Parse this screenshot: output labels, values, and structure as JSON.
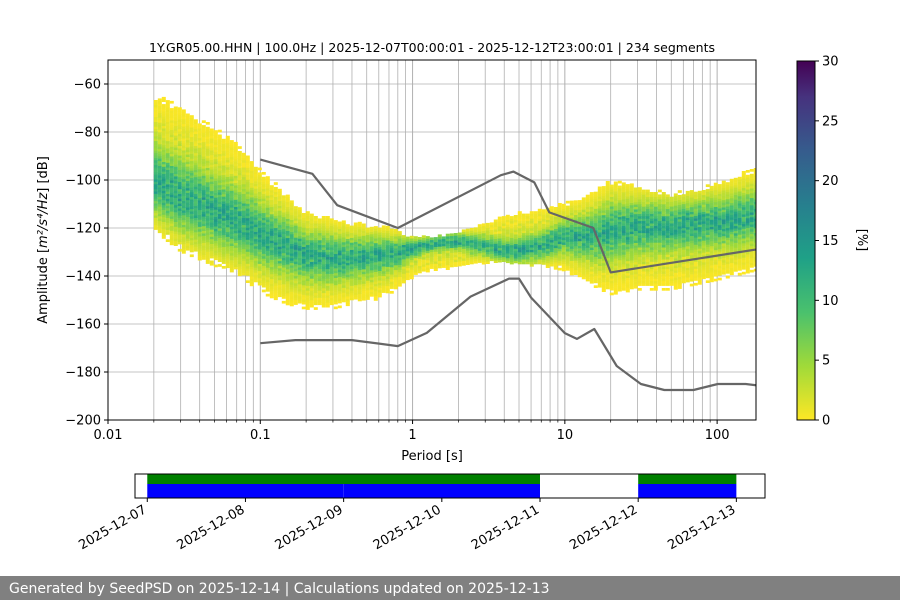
{
  "chart_data": [
    {
      "type": "heatmap",
      "title": "1Y.GR05.00.HHN | 100.0Hz | 2025-12-07T00:00:01 - 2025-12-12T23:00:01 | 234 segments",
      "xlabel": "Period [s]",
      "ylabel_main": "Amplitude [",
      "ylabel_math": "m²/s⁴/Hz",
      "ylabel_tail": "] [dB]",
      "x_scale": "log",
      "xlim": [
        0.01,
        180
      ],
      "ylim": [
        -200,
        -50
      ],
      "x_ticks": [
        0.01,
        0.1,
        1,
        10,
        100
      ],
      "x_tick_labels": [
        "0.01",
        "0.1",
        "1",
        "10",
        "100"
      ],
      "y_ticks": [
        -200,
        -180,
        -160,
        -140,
        -120,
        -100,
        -80,
        -60
      ],
      "y_tick_labels": [
        "−200",
        "−180",
        "−160",
        "−140",
        "−120",
        "−100",
        "−80",
        "−60"
      ],
      "grid": "vertical minor and major on x, major on y",
      "colormap": "viridis_r",
      "colorbar": {
        "label": "[%]",
        "range": [
          0,
          30
        ],
        "ticks": [
          0,
          5,
          10,
          15,
          20,
          25,
          30
        ],
        "tick_labels": [
          "0",
          "5",
          "10",
          "15",
          "20",
          "25",
          "30"
        ]
      },
      "psd_band": {
        "period": [
          0.02,
          0.03,
          0.05,
          0.08,
          0.1,
          0.15,
          0.2,
          0.3,
          0.4,
          0.6,
          0.8,
          1.0,
          1.3,
          2.0,
          3.0,
          4.0,
          5.0,
          7.0,
          10,
          15,
          20,
          30,
          50,
          100,
          180
        ],
        "upper_db": [
          -64,
          -70,
          -78,
          -88,
          -96,
          -106,
          -113,
          -116,
          -118,
          -119,
          -121,
          -124,
          -124,
          -122,
          -118,
          -115,
          -114,
          -112,
          -110,
          -106,
          -100,
          -103,
          -106,
          -102,
          -95
        ],
        "lower_db": [
          -121,
          -130,
          -136,
          -142,
          -147,
          -152,
          -154,
          -154,
          -152,
          -150,
          -146,
          -141,
          -138,
          -137,
          -135,
          -134,
          -136,
          -136,
          -138,
          -144,
          -148,
          -146,
          -146,
          -142,
          -138
        ],
        "mode_db": [
          -100,
          -107,
          -113,
          -119,
          -123,
          -128,
          -132,
          -133,
          -133,
          -132,
          -131,
          -129,
          -127,
          -126,
          -128,
          -130,
          -130,
          -128,
          -124,
          -124,
          -122,
          -120,
          -120,
          -118,
          -116
        ],
        "peak_percent": 14
      },
      "high_noise_model": {
        "period": [
          0.1,
          0.22,
          0.32,
          0.8,
          3.8,
          4.6,
          6.3,
          7.9,
          15.4,
          20.0,
          354.8
        ],
        "db": [
          -91.5,
          -97.4,
          -110.5,
          -120.0,
          -98.0,
          -96.5,
          -101.0,
          -113.5,
          -120.0,
          -138.5,
          -126.0
        ]
      },
      "low_noise_model": {
        "period": [
          0.1,
          0.17,
          0.4,
          0.8,
          1.24,
          2.4,
          4.3,
          5.0,
          6.0,
          10.0,
          12.0,
          15.6,
          21.9,
          31.6,
          45.0,
          70.0,
          101.0,
          154.0,
          328.0
        ],
        "db": [
          -168.0,
          -166.7,
          -166.7,
          -169.2,
          -163.7,
          -148.6,
          -141.1,
          -141.1,
          -149.0,
          -163.8,
          -166.2,
          -162.1,
          -177.5,
          -185.0,
          -187.5,
          -187.5,
          -185.0,
          -185.0,
          -187.5
        ]
      },
      "noise_model_color": "#666666"
    },
    {
      "type": "timeline",
      "tick_labels": [
        "2025-12-07",
        "2025-12-08",
        "2025-12-09",
        "2025-12-10",
        "2025-12-11",
        "2025-12-12",
        "2025-12-13"
      ],
      "xlim": [
        "2025-12-06T21:00",
        "2025-12-13T07:00"
      ],
      "green_spans": [
        [
          "2025-12-07T00:00",
          "2025-12-11T00:00"
        ],
        [
          "2025-12-12T00:00",
          "2025-12-13T00:00"
        ]
      ],
      "blue_spans": [
        [
          "2025-12-07T00:00",
          "2025-12-09T00:00"
        ],
        [
          "2025-12-09T00:01",
          "2025-12-11T00:00"
        ],
        [
          "2025-12-12T00:00",
          "2025-12-13T00:00"
        ]
      ],
      "green_color": "#008000",
      "blue_color": "#0000ff"
    }
  ],
  "footer": {
    "text": "Generated by SeedPSD on 2025-12-14 | Calculations updated on 2025-12-13"
  }
}
